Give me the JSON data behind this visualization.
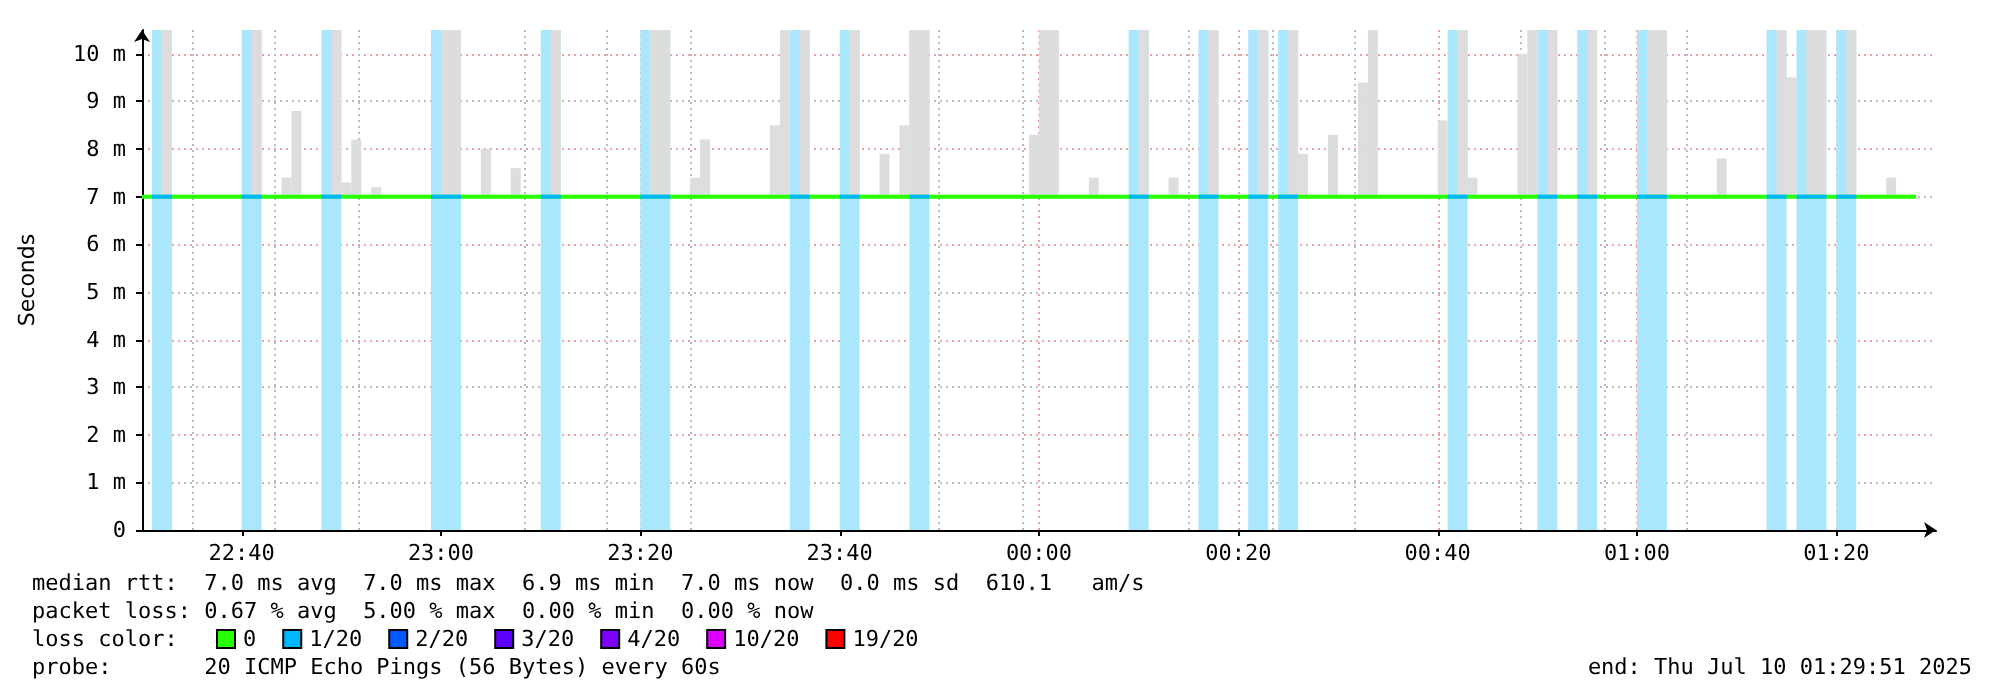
{
  "chart_data": {
    "type": "line",
    "ylabel": "Seconds",
    "legend_title": "loss color:",
    "legend": "bottom",
    "grid": true,
    "xlim": [
      "2025-07-09T22:30",
      "2025-07-10T01:30"
    ],
    "xticks": [
      {
        "value": "2025-07-09T22:40",
        "label": "22:40"
      },
      {
        "value": "2025-07-09T23:00",
        "label": "23:00"
      },
      {
        "value": "2025-07-09T23:20",
        "label": "23:20"
      },
      {
        "value": "2025-07-09T23:40",
        "label": "23:40"
      },
      {
        "value": "2025-07-10T00:00",
        "label": "00:00"
      },
      {
        "value": "2025-07-10T00:20",
        "label": "00:20"
      },
      {
        "value": "2025-07-10T00:40",
        "label": "00:40"
      },
      {
        "value": "2025-07-10T01:00",
        "label": "01:00"
      },
      {
        "value": "2025-07-10T01:20",
        "label": "01:20"
      }
    ],
    "ylim": [
      0,
      10.5
    ],
    "yticks": [
      0,
      {
        "value": 1,
        "label": "1 m"
      },
      {
        "value": 2,
        "label": "2 m"
      },
      {
        "value": 3,
        "label": "3 m"
      },
      {
        "value": 4,
        "label": "4 m"
      },
      {
        "value": 5,
        "label": "5 m"
      },
      {
        "value": 6,
        "label": "6 m"
      },
      {
        "value": 7,
        "label": "7 m"
      },
      {
        "value": 8,
        "label": "8 m"
      },
      {
        "value": 9,
        "label": "9 m"
      },
      {
        "value": 10,
        "label": "10 m"
      }
    ],
    "bands": [
      {
        "axis": "x",
        "from": "2025-07-09T22:31",
        "to": "2025-07-09T22:33",
        "color": "#aae6fc"
      },
      {
        "axis": "x",
        "from": "2025-07-09T22:40",
        "to": "2025-07-09T22:42",
        "color": "#aae6fc"
      },
      {
        "axis": "x",
        "from": "2025-07-09T22:48",
        "to": "2025-07-09T22:50",
        "color": "#aae6fc"
      },
      {
        "axis": "x",
        "from": "2025-07-09T22:59",
        "to": "2025-07-09T23:02",
        "color": "#aae6fc"
      },
      {
        "axis": "x",
        "from": "2025-07-09T23:10",
        "to": "2025-07-09T23:12",
        "color": "#aae6fc"
      },
      {
        "axis": "x",
        "from": "2025-07-09T23:20",
        "to": "2025-07-09T23:23",
        "color": "#aae6fc"
      },
      {
        "axis": "x",
        "from": "2025-07-09T23:35",
        "to": "2025-07-09T23:37",
        "color": "#aae6fc"
      },
      {
        "axis": "x",
        "from": "2025-07-09T23:40",
        "to": "2025-07-09T23:42",
        "color": "#aae6fc"
      },
      {
        "axis": "x",
        "from": "2025-07-09T23:47",
        "to": "2025-07-09T23:49",
        "color": "#aae6fc"
      },
      {
        "axis": "x",
        "from": "2025-07-10T00:09",
        "to": "2025-07-10T00:11",
        "color": "#aae6fc"
      },
      {
        "axis": "x",
        "from": "2025-07-10T00:16",
        "to": "2025-07-10T00:18",
        "color": "#aae6fc"
      },
      {
        "axis": "x",
        "from": "2025-07-10T00:21",
        "to": "2025-07-10T00:23",
        "color": "#aae6fc"
      },
      {
        "axis": "x",
        "from": "2025-07-10T00:24",
        "to": "2025-07-10T00:26",
        "color": "#aae6fc"
      },
      {
        "axis": "x",
        "from": "2025-07-10T00:41",
        "to": "2025-07-10T00:43",
        "color": "#aae6fc"
      },
      {
        "axis": "x",
        "from": "2025-07-10T00:50",
        "to": "2025-07-10T00:52",
        "color": "#aae6fc"
      },
      {
        "axis": "x",
        "from": "2025-07-10T00:54",
        "to": "2025-07-10T00:56",
        "color": "#aae6fc"
      },
      {
        "axis": "x",
        "from": "2025-07-10T01:00",
        "to": "2025-07-10T01:03",
        "color": "#aae6fc"
      },
      {
        "axis": "x",
        "from": "2025-07-10T01:13",
        "to": "2025-07-10T01:15",
        "color": "#aae6fc"
      },
      {
        "axis": "x",
        "from": "2025-07-10T01:16",
        "to": "2025-07-10T01:19",
        "color": "#aae6fc"
      },
      {
        "axis": "x",
        "from": "2025-07-10T01:20",
        "to": "2025-07-10T01:22",
        "color": "#aae6fc"
      }
    ],
    "series": [
      {
        "type": "bar",
        "color": "#dddddd",
        "x": [
          "2025-07-09T22:32",
          "2025-07-09T22:41",
          "2025-07-09T22:44",
          "2025-07-09T22:45",
          "2025-07-09T22:49",
          "2025-07-09T22:50",
          "2025-07-09T22:51",
          "2025-07-09T22:53",
          "2025-07-09T23:00",
          "2025-07-09T23:01",
          "2025-07-09T23:04",
          "2025-07-09T23:07",
          "2025-07-09T23:11",
          "2025-07-09T23:21",
          "2025-07-09T23:22",
          "2025-07-09T23:25",
          "2025-07-09T23:26",
          "2025-07-09T23:33",
          "2025-07-09T23:34",
          "2025-07-09T23:36",
          "2025-07-09T23:41",
          "2025-07-09T23:44",
          "2025-07-09T23:46",
          "2025-07-09T23:47",
          "2025-07-09T23:48",
          "2025-07-09T23:59",
          "2025-07-10T00:00",
          "2025-07-10T00:01",
          "2025-07-10T00:05",
          "2025-07-10T00:10",
          "2025-07-10T00:13",
          "2025-07-10T00:17",
          "2025-07-10T00:22",
          "2025-07-10T00:25",
          "2025-07-10T00:26",
          "2025-07-10T00:29",
          "2025-07-10T00:32",
          "2025-07-10T00:33",
          "2025-07-10T00:40",
          "2025-07-10T00:42",
          "2025-07-10T00:43",
          "2025-07-10T00:48",
          "2025-07-10T00:49",
          "2025-07-10T00:51",
          "2025-07-10T00:55",
          "2025-07-10T01:01",
          "2025-07-10T01:02",
          "2025-07-10T01:08",
          "2025-07-10T01:14",
          "2025-07-10T01:15",
          "2025-07-10T01:17",
          "2025-07-10T01:18",
          "2025-07-10T01:21",
          "2025-07-10T01:25"
        ],
        "base": [
          7,
          7,
          7,
          7,
          7,
          7,
          7,
          7,
          7,
          7,
          7,
          7,
          7,
          7,
          7,
          7,
          7,
          7,
          7,
          7,
          7,
          7,
          7,
          7,
          7,
          7,
          7,
          7,
          7,
          7,
          7,
          7,
          7,
          7,
          7,
          7,
          7,
          7,
          7,
          7,
          7,
          7,
          7,
          7,
          7,
          7,
          7,
          7,
          7,
          7,
          7,
          7,
          7,
          7
        ],
        "values": [
          3.5,
          3.5,
          0.4,
          1.8,
          3.5,
          0.3,
          1.2,
          0.2,
          3.5,
          3.5,
          1.0,
          0.6,
          3.5,
          3.5,
          3.5,
          0.4,
          1.2,
          1.5,
          3.5,
          3.5,
          3.5,
          0.9,
          1.5,
          3.5,
          3.5,
          1.3,
          3.5,
          3.5,
          0.4,
          3.5,
          0.4,
          3.5,
          3.5,
          3.5,
          0.9,
          1.3,
          2.4,
          3.5,
          1.6,
          3.5,
          0.4,
          3.0,
          3.5,
          3.5,
          3.5,
          3.5,
          3.5,
          0.8,
          3.5,
          2.5,
          3.5,
          3.5,
          3.5,
          0.4
        ]
      },
      {
        "name": "0",
        "color": "#26ff00",
        "x": [
          "2025-07-09T22:30",
          "2025-07-10T01:28"
        ],
        "values": [
          7.0,
          7.0
        ]
      },
      {
        "name": "1/20",
        "color": "#00b8ff",
        "x": [
          "2025-07-09T22:31",
          "2025-07-09T22:33"
        ],
        "values": [
          7.0,
          7.0
        ]
      },
      {
        "color": "#00b8ff",
        "x": [
          "2025-07-09T22:40",
          "2025-07-09T22:42"
        ],
        "values": [
          7.0,
          7.0
        ]
      },
      {
        "color": "#00b8ff",
        "x": [
          "2025-07-09T22:48",
          "2025-07-09T22:50"
        ],
        "values": [
          7.0,
          7.0
        ]
      },
      {
        "color": "#00b8ff",
        "x": [
          "2025-07-09T22:59",
          "2025-07-09T23:02"
        ],
        "values": [
          7.0,
          7.0
        ]
      },
      {
        "color": "#00b8ff",
        "x": [
          "2025-07-09T23:10",
          "2025-07-09T23:12"
        ],
        "values": [
          7.0,
          7.0
        ]
      },
      {
        "color": "#00b8ff",
        "x": [
          "2025-07-09T23:20",
          "2025-07-09T23:23"
        ],
        "values": [
          7.0,
          7.0
        ]
      },
      {
        "color": "#00b8ff",
        "x": [
          "2025-07-09T23:35",
          "2025-07-09T23:37"
        ],
        "values": [
          7.0,
          7.0
        ]
      },
      {
        "color": "#00b8ff",
        "x": [
          "2025-07-09T23:40",
          "2025-07-09T23:42"
        ],
        "values": [
          7.0,
          7.0
        ]
      },
      {
        "color": "#00b8ff",
        "x": [
          "2025-07-09T23:47",
          "2025-07-09T23:49"
        ],
        "values": [
          7.0,
          7.0
        ]
      },
      {
        "color": "#00b8ff",
        "x": [
          "2025-07-10T00:09",
          "2025-07-10T00:11"
        ],
        "values": [
          7.0,
          7.0
        ]
      },
      {
        "color": "#00b8ff",
        "x": [
          "2025-07-10T00:16",
          "2025-07-10T00:18"
        ],
        "values": [
          7.0,
          7.0
        ]
      },
      {
        "color": "#00b8ff",
        "x": [
          "2025-07-10T00:21",
          "2025-07-10T00:23"
        ],
        "values": [
          7.0,
          7.0
        ]
      },
      {
        "color": "#00b8ff",
        "x": [
          "2025-07-10T00:24",
          "2025-07-10T00:26"
        ],
        "values": [
          7.0,
          7.0
        ]
      },
      {
        "color": "#00b8ff",
        "x": [
          "2025-07-10T00:41",
          "2025-07-10T00:43"
        ],
        "values": [
          7.0,
          7.0
        ]
      },
      {
        "color": "#00b8ff",
        "x": [
          "2025-07-10T00:50",
          "2025-07-10T00:52"
        ],
        "values": [
          7.0,
          7.0
        ]
      },
      {
        "color": "#00b8ff",
        "x": [
          "2025-07-10T00:54",
          "2025-07-10T00:56"
        ],
        "values": [
          7.0,
          7.0
        ]
      },
      {
        "color": "#00b8ff",
        "x": [
          "2025-07-10T01:00",
          "2025-07-10T01:03"
        ],
        "values": [
          7.0,
          7.0
        ]
      },
      {
        "color": "#00b8ff",
        "x": [
          "2025-07-10T01:13",
          "2025-07-10T01:15"
        ],
        "values": [
          7.0,
          7.0
        ]
      },
      {
        "color": "#00b8ff",
        "x": [
          "2025-07-10T01:16",
          "2025-07-10T01:19"
        ],
        "values": [
          7.0,
          7.0
        ]
      },
      {
        "color": "#00b8ff",
        "x": [
          "2025-07-10T01:20",
          "2025-07-10T01:22"
        ],
        "values": [
          7.0,
          7.0
        ]
      },
      {
        "name": "2/20",
        "color": "#0059ff"
      },
      {
        "name": "3/20",
        "color": "#5e00ff"
      },
      {
        "name": "4/20",
        "color": "#7e00ff"
      },
      {
        "name": "10/20",
        "color": "#dd00ff"
      },
      {
        "name": "19/20",
        "color": "#ff0000"
      }
    ],
    "annotations": [
      "median rtt:  7.0 ms avg  7.0 ms max  6.9 ms min  7.0 ms now  0.0 ms sd  610.1   am/s",
      "packet loss: 0.67 % avg  5.00 % max  0.00 % min  0.00 % now",
      "probe:       20 ICMP Echo Pings (56 Bytes) every 60s",
      "end: Thu Jul 10 01:29:51 2025"
    ]
  }
}
